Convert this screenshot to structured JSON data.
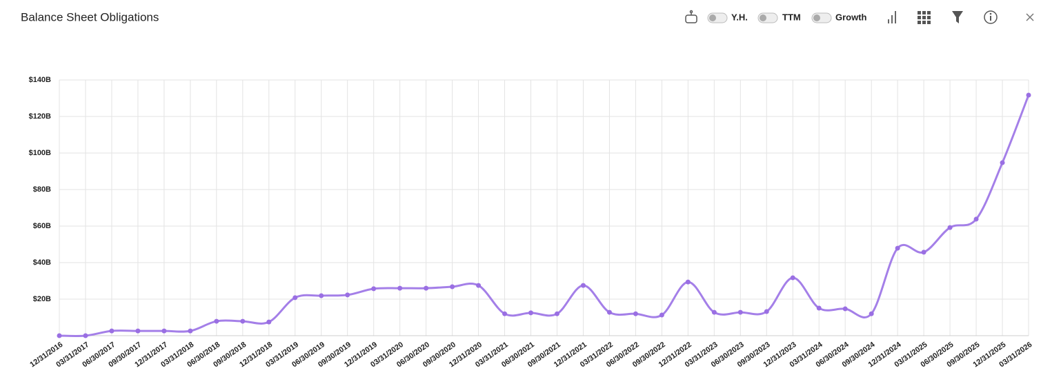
{
  "header": {
    "title": "Balance Sheet Obligations",
    "toggles": [
      "Y.H.",
      "TTM",
      "Growth"
    ]
  },
  "chart_data": {
    "type": "line",
    "categories": [
      "12/31/2016",
      "03/31/2017",
      "06/30/2017",
      "09/30/2017",
      "12/31/2017",
      "03/31/2018",
      "06/30/2018",
      "09/30/2018",
      "12/31/2018",
      "03/31/2019",
      "06/30/2019",
      "09/30/2019",
      "12/31/2019",
      "03/31/2020",
      "06/30/2020",
      "09/30/2020",
      "12/31/2020",
      "03/31/2021",
      "06/30/2021",
      "09/30/2021",
      "12/31/2021",
      "03/31/2022",
      "06/30/2022",
      "09/30/2022",
      "12/31/2022",
      "03/31/2023",
      "06/30/2023",
      "09/30/2023",
      "12/31/2023",
      "03/31/2024",
      "06/30/2024",
      "09/30/2024",
      "12/31/2024",
      "03/31/2025",
      "06/30/2025",
      "09/30/2025",
      "12/31/2025",
      "03/31/2026"
    ],
    "values": [
      0,
      0,
      2.6,
      2.6,
      2.6,
      2.6,
      7.9,
      7.9,
      7.5,
      20.8,
      21.9,
      22.3,
      25.7,
      26,
      26,
      26.8,
      27.5,
      12,
      12.5,
      12,
      27.5,
      12.8,
      12,
      11.3,
      29.4,
      12.8,
      12.8,
      13.2,
      31.7,
      15.1,
      14.7,
      12,
      47.9,
      45.7,
      59.2,
      63.8,
      94.7,
      131.7
    ],
    "color": "#a47fe8",
    "ylim": [
      0,
      140
    ],
    "yticks": [
      {
        "value": 20,
        "label": "$20B"
      },
      {
        "value": 40,
        "label": "$40B"
      },
      {
        "value": 60,
        "label": "$60B"
      },
      {
        "value": 80,
        "label": "$80B"
      },
      {
        "value": 100,
        "label": "$100B"
      },
      {
        "value": 120,
        "label": "$120B"
      },
      {
        "value": 140,
        "label": "$140B"
      }
    ],
    "grid": true
  }
}
